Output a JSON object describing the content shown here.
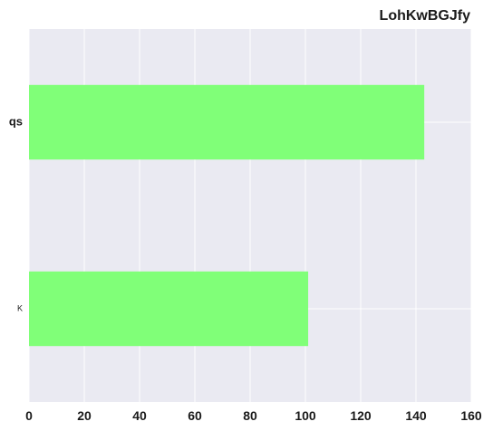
{
  "chart_data": {
    "type": "bar",
    "orientation": "horizontal",
    "title": "LohKwBGJfy",
    "categories": [
      "qs",
      "K"
    ],
    "values": [
      143,
      101
    ],
    "xlabel": "",
    "ylabel": "",
    "xlim": [
      0,
      160
    ],
    "x_ticks": [
      "0",
      "20",
      "40",
      "60",
      "80",
      "100",
      "120",
      "140",
      "160"
    ],
    "grid": true,
    "colors": {
      "bar": "#80ff78",
      "plot_background": "#eaeaf2",
      "grid": "#ffffff"
    }
  }
}
